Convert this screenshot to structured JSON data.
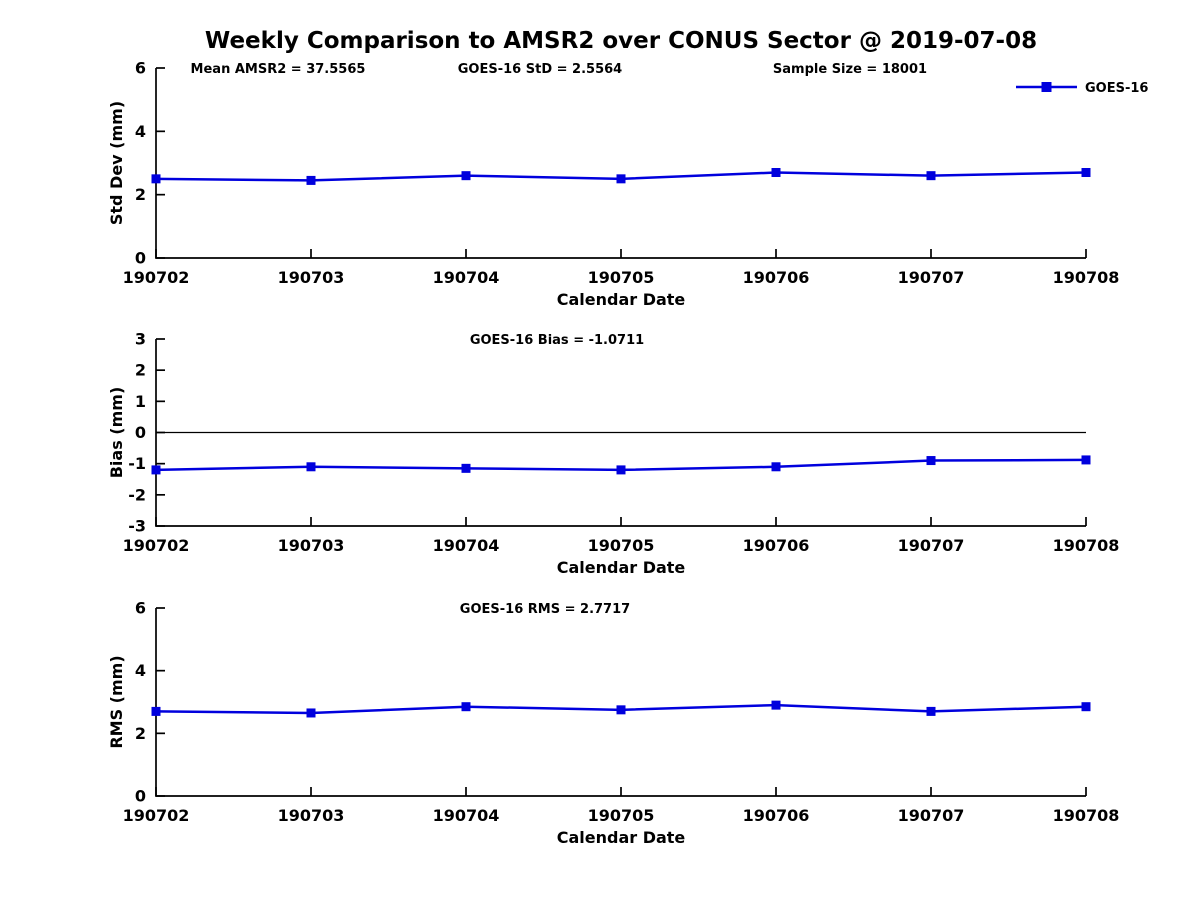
{
  "title": "Weekly Comparison to AMSR2 over CONUS Sector @ 2019-07-08",
  "colors": {
    "series": "#0000dd",
    "axis": "#000000",
    "zero_line": "#000000"
  },
  "legend": {
    "label": "GOES-16",
    "position": "upper right"
  },
  "x_axis_label": "Calendar Date",
  "categories": [
    "190702",
    "190703",
    "190704",
    "190705",
    "190706",
    "190707",
    "190708"
  ],
  "chart_data": [
    {
      "type": "line",
      "ylabel": "Std Dev (mm)",
      "xlabel": "Calendar Date",
      "ylim": [
        0,
        6
      ],
      "yticks": [
        0,
        2,
        4,
        6
      ],
      "categories": [
        "190702",
        "190703",
        "190704",
        "190705",
        "190706",
        "190707",
        "190708"
      ],
      "series": [
        {
          "name": "GOES-16",
          "values": [
            2.5,
            2.45,
            2.6,
            2.5,
            2.7,
            2.6,
            2.7
          ]
        }
      ],
      "annotations": [
        "Mean AMSR2 = 37.5565",
        "GOES-16 StD = 2.5564",
        "Sample Size = 18001"
      ],
      "legend_entries": [
        "GOES-16"
      ],
      "grid": false
    },
    {
      "type": "line",
      "ylabel": "Bias (mm)",
      "xlabel": "Calendar Date",
      "ylim": [
        -3,
        3
      ],
      "yticks": [
        3,
        2,
        1,
        0,
        -1,
        -2,
        -3
      ],
      "categories": [
        "190702",
        "190703",
        "190704",
        "190705",
        "190706",
        "190707",
        "190708"
      ],
      "series": [
        {
          "name": "GOES-16",
          "values": [
            -1.2,
            -1.1,
            -1.15,
            -1.2,
            -1.1,
            -0.9,
            -0.88
          ]
        }
      ],
      "annotations": [
        "GOES-16 Bias  = -1.0711"
      ],
      "zero_line": true,
      "grid": false
    },
    {
      "type": "line",
      "ylabel": "RMS (mm)",
      "xlabel": "Calendar Date",
      "ylim": [
        0,
        6
      ],
      "yticks": [
        0,
        2,
        4,
        6
      ],
      "categories": [
        "190702",
        "190703",
        "190704",
        "190705",
        "190706",
        "190707",
        "190708"
      ],
      "series": [
        {
          "name": "GOES-16",
          "values": [
            2.7,
            2.65,
            2.85,
            2.75,
            2.9,
            2.7,
            2.85
          ]
        }
      ],
      "annotations": [
        "GOES-16 RMS = 2.7717"
      ],
      "grid": false
    }
  ]
}
